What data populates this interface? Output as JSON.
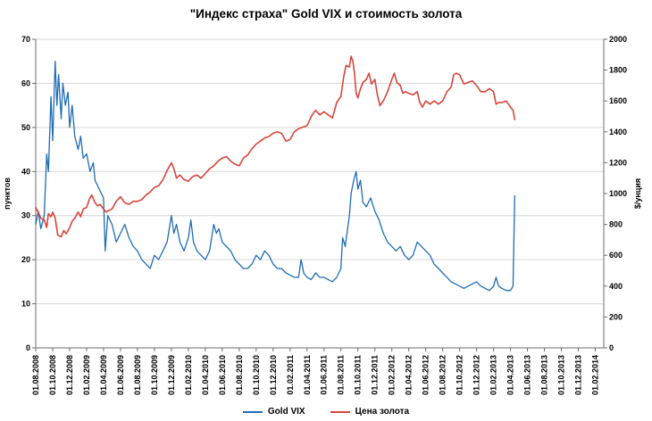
{
  "chart_data": {
    "type": "line",
    "title": "\"Индекс страха\" Gold VIX и стоимость золота",
    "grid": "horizontal",
    "legend_position": "bottom",
    "x_axis": {
      "tick_interval_months": 2,
      "max_months": 67,
      "tick_labels": [
        "01.08.2008",
        "01.10.2008",
        "01.12.2008",
        "01.02.2009",
        "01.04.2009",
        "01.06.2009",
        "01.08.2009",
        "01.10.2009",
        "01.12.2009",
        "01.02.2010",
        "01.04.2010",
        "01.06.2010",
        "01.08.2010",
        "01.10.2010",
        "01.12.2010",
        "01.02.2011",
        "01.04.2011",
        "01.06.2011",
        "01.08.2011",
        "01.10.2011",
        "01.12.2011",
        "01.02.2012",
        "01.04.2012",
        "01.06.2012",
        "01.08.2012",
        "01.10.2012",
        "01.12.2012",
        "01.02.2013",
        "01.04.2013",
        "01.06.2013",
        "01.08.2013",
        "01.10.2013",
        "01.12.2013",
        "01.02.2014"
      ]
    },
    "left_axis": {
      "label": "пунктов",
      "min": 0,
      "max": 70,
      "ticks": [
        0,
        10,
        20,
        30,
        40,
        50,
        60,
        70
      ]
    },
    "right_axis": {
      "label": "$/унция",
      "min": 0,
      "max": 2000,
      "ticks": [
        0,
        200,
        400,
        600,
        800,
        1000,
        1200,
        1400,
        1600,
        1800,
        2000
      ]
    },
    "series": [
      {
        "name": "Gold VIX",
        "axis": "left",
        "color": "#1f6cb4",
        "points": [
          [
            0,
            28
          ],
          [
            0.3,
            31
          ],
          [
            0.6,
            27
          ],
          [
            1,
            30
          ],
          [
            1.3,
            44
          ],
          [
            1.5,
            40
          ],
          [
            1.8,
            57
          ],
          [
            2,
            47
          ],
          [
            2.3,
            65
          ],
          [
            2.5,
            55
          ],
          [
            2.7,
            62
          ],
          [
            3,
            52
          ],
          [
            3.2,
            60
          ],
          [
            3.5,
            55
          ],
          [
            3.8,
            58
          ],
          [
            4,
            50
          ],
          [
            4.3,
            55
          ],
          [
            4.6,
            48
          ],
          [
            5,
            45
          ],
          [
            5.3,
            48
          ],
          [
            5.6,
            43
          ],
          [
            6,
            44
          ],
          [
            6.4,
            40
          ],
          [
            6.8,
            42
          ],
          [
            7,
            38
          ],
          [
            7.5,
            36
          ],
          [
            8,
            34
          ],
          [
            8.2,
            22
          ],
          [
            8.5,
            30
          ],
          [
            9,
            28
          ],
          [
            9.5,
            24
          ],
          [
            10,
            26
          ],
          [
            10.5,
            28
          ],
          [
            11,
            25
          ],
          [
            11.5,
            23
          ],
          [
            12,
            22
          ],
          [
            12.5,
            20
          ],
          [
            13,
            19
          ],
          [
            13.5,
            18
          ],
          [
            14,
            21
          ],
          [
            14.5,
            20
          ],
          [
            15,
            22
          ],
          [
            15.5,
            24
          ],
          [
            16,
            30
          ],
          [
            16.3,
            26
          ],
          [
            16.6,
            28
          ],
          [
            17,
            24
          ],
          [
            17.5,
            22
          ],
          [
            18,
            25
          ],
          [
            18.3,
            29
          ],
          [
            18.6,
            24
          ],
          [
            19,
            22
          ],
          [
            19.5,
            21
          ],
          [
            20,
            20
          ],
          [
            20.5,
            22
          ],
          [
            21,
            28
          ],
          [
            21.3,
            26
          ],
          [
            21.6,
            27
          ],
          [
            22,
            24
          ],
          [
            22.5,
            23
          ],
          [
            23,
            22
          ],
          [
            23.5,
            20
          ],
          [
            24,
            19
          ],
          [
            24.5,
            18
          ],
          [
            25,
            18
          ],
          [
            25.5,
            19
          ],
          [
            26,
            21
          ],
          [
            26.5,
            20
          ],
          [
            27,
            22
          ],
          [
            27.5,
            21
          ],
          [
            28,
            19
          ],
          [
            28.5,
            18
          ],
          [
            29,
            18
          ],
          [
            29.5,
            17
          ],
          [
            30,
            16.5
          ],
          [
            30.5,
            16
          ],
          [
            31,
            16
          ],
          [
            31.3,
            20
          ],
          [
            31.6,
            17
          ],
          [
            32,
            16
          ],
          [
            32.5,
            15.5
          ],
          [
            33,
            17
          ],
          [
            33.5,
            16
          ],
          [
            34,
            16
          ],
          [
            34.5,
            15.5
          ],
          [
            35,
            15
          ],
          [
            35.5,
            16
          ],
          [
            36,
            18
          ],
          [
            36.2,
            25
          ],
          [
            36.5,
            23
          ],
          [
            37,
            30
          ],
          [
            37.2,
            35
          ],
          [
            37.5,
            38
          ],
          [
            37.8,
            40
          ],
          [
            38,
            36
          ],
          [
            38.3,
            38
          ],
          [
            38.6,
            33
          ],
          [
            39,
            32
          ],
          [
            39.5,
            34
          ],
          [
            40,
            31
          ],
          [
            40.5,
            29
          ],
          [
            41,
            26
          ],
          [
            41.5,
            24
          ],
          [
            42,
            23
          ],
          [
            42.5,
            22
          ],
          [
            43,
            23
          ],
          [
            43.5,
            21
          ],
          [
            44,
            20
          ],
          [
            44.5,
            21
          ],
          [
            45,
            24
          ],
          [
            45.5,
            23
          ],
          [
            46,
            22
          ],
          [
            46.5,
            21
          ],
          [
            47,
            19
          ],
          [
            47.5,
            18
          ],
          [
            48,
            17
          ],
          [
            48.5,
            16
          ],
          [
            49,
            15
          ],
          [
            49.5,
            14.5
          ],
          [
            50,
            14
          ],
          [
            50.5,
            13.5
          ],
          [
            51,
            14
          ],
          [
            51.5,
            14.5
          ],
          [
            52,
            15
          ],
          [
            52.5,
            14
          ],
          [
            53,
            13.5
          ],
          [
            53.5,
            13
          ],
          [
            54,
            14
          ],
          [
            54.3,
            16
          ],
          [
            54.6,
            14
          ],
          [
            55,
            13.5
          ],
          [
            55.5,
            13
          ],
          [
            56,
            13
          ],
          [
            56.3,
            14
          ],
          [
            56.5,
            34.5
          ]
        ]
      },
      {
        "name": "Цена золота",
        "axis": "right",
        "color": "#d8453c",
        "points": [
          [
            0,
            910
          ],
          [
            0.3,
            880
          ],
          [
            0.6,
            840
          ],
          [
            1,
            830
          ],
          [
            1.3,
            780
          ],
          [
            1.5,
            870
          ],
          [
            1.8,
            850
          ],
          [
            2,
            880
          ],
          [
            2.3,
            840
          ],
          [
            2.6,
            730
          ],
          [
            3,
            720
          ],
          [
            3.3,
            760
          ],
          [
            3.6,
            740
          ],
          [
            4,
            780
          ],
          [
            4.3,
            820
          ],
          [
            4.6,
            840
          ],
          [
            5,
            880
          ],
          [
            5.3,
            850
          ],
          [
            5.6,
            900
          ],
          [
            6,
            910
          ],
          [
            6.3,
            960
          ],
          [
            6.6,
            990
          ],
          [
            7,
            940
          ],
          [
            7.3,
            920
          ],
          [
            7.6,
            930
          ],
          [
            8,
            900
          ],
          [
            8.3,
            880
          ],
          [
            8.6,
            890
          ],
          [
            9,
            900
          ],
          [
            9.5,
            950
          ],
          [
            10,
            980
          ],
          [
            10.5,
            940
          ],
          [
            11,
            930
          ],
          [
            11.5,
            950
          ],
          [
            12,
            950
          ],
          [
            12.5,
            960
          ],
          [
            13,
            990
          ],
          [
            13.5,
            1010
          ],
          [
            14,
            1040
          ],
          [
            14.5,
            1050
          ],
          [
            15,
            1090
          ],
          [
            15.5,
            1150
          ],
          [
            16,
            1200
          ],
          [
            16.3,
            1160
          ],
          [
            16.6,
            1100
          ],
          [
            17,
            1120
          ],
          [
            17.5,
            1090
          ],
          [
            18,
            1080
          ],
          [
            18.5,
            1110
          ],
          [
            19,
            1120
          ],
          [
            19.5,
            1100
          ],
          [
            20,
            1130
          ],
          [
            20.5,
            1160
          ],
          [
            21,
            1180
          ],
          [
            21.5,
            1210
          ],
          [
            22,
            1230
          ],
          [
            22.5,
            1240
          ],
          [
            23,
            1210
          ],
          [
            23.5,
            1190
          ],
          [
            24,
            1180
          ],
          [
            24.5,
            1230
          ],
          [
            25,
            1250
          ],
          [
            25.5,
            1290
          ],
          [
            26,
            1320
          ],
          [
            26.5,
            1340
          ],
          [
            27,
            1360
          ],
          [
            27.5,
            1370
          ],
          [
            28,
            1390
          ],
          [
            28.5,
            1400
          ],
          [
            29,
            1390
          ],
          [
            29.5,
            1340
          ],
          [
            30,
            1350
          ],
          [
            30.5,
            1400
          ],
          [
            31,
            1420
          ],
          [
            31.5,
            1430
          ],
          [
            32,
            1440
          ],
          [
            32.5,
            1500
          ],
          [
            33,
            1540
          ],
          [
            33.5,
            1510
          ],
          [
            34,
            1530
          ],
          [
            34.5,
            1510
          ],
          [
            35,
            1490
          ],
          [
            35.5,
            1590
          ],
          [
            36,
            1630
          ],
          [
            36.3,
            1750
          ],
          [
            36.6,
            1830
          ],
          [
            37,
            1820
          ],
          [
            37.2,
            1890
          ],
          [
            37.4,
            1860
          ],
          [
            37.6,
            1780
          ],
          [
            37.8,
            1650
          ],
          [
            38,
            1620
          ],
          [
            38.3,
            1680
          ],
          [
            38.6,
            1720
          ],
          [
            39,
            1740
          ],
          [
            39.3,
            1780
          ],
          [
            39.6,
            1710
          ],
          [
            40,
            1740
          ],
          [
            40.3,
            1640
          ],
          [
            40.6,
            1570
          ],
          [
            41,
            1600
          ],
          [
            41.5,
            1660
          ],
          [
            42,
            1740
          ],
          [
            42.3,
            1780
          ],
          [
            42.6,
            1720
          ],
          [
            43,
            1700
          ],
          [
            43.3,
            1650
          ],
          [
            43.6,
            1660
          ],
          [
            44,
            1650
          ],
          [
            44.5,
            1640
          ],
          [
            45,
            1660
          ],
          [
            45.3,
            1590
          ],
          [
            45.6,
            1560
          ],
          [
            46,
            1600
          ],
          [
            46.5,
            1580
          ],
          [
            47,
            1600
          ],
          [
            47.5,
            1580
          ],
          [
            48,
            1600
          ],
          [
            48.5,
            1660
          ],
          [
            49,
            1690
          ],
          [
            49.3,
            1770
          ],
          [
            49.6,
            1780
          ],
          [
            50,
            1770
          ],
          [
            50.5,
            1710
          ],
          [
            51,
            1720
          ],
          [
            51.5,
            1730
          ],
          [
            52,
            1700
          ],
          [
            52.5,
            1660
          ],
          [
            53,
            1660
          ],
          [
            53.5,
            1680
          ],
          [
            54,
            1660
          ],
          [
            54.3,
            1580
          ],
          [
            54.6,
            1590
          ],
          [
            55,
            1590
          ],
          [
            55.5,
            1600
          ],
          [
            56,
            1560
          ],
          [
            56.3,
            1540
          ],
          [
            56.5,
            1480
          ]
        ]
      }
    ],
    "colors": {
      "grid": "#d6d6d6",
      "axis": "#6e6e6e",
      "text": "#000000",
      "background": "#ffffff"
    }
  }
}
